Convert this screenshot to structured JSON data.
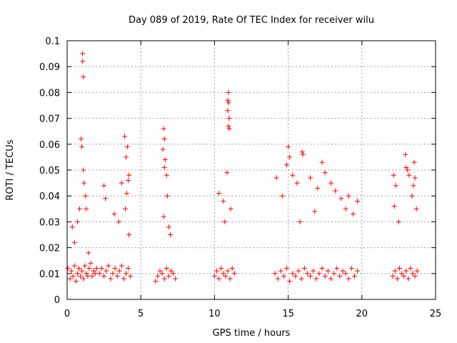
{
  "chart_data": {
    "type": "scatter",
    "title": "Day 089 of 2019, Rate Of TEC Index for receiver wilu",
    "xlabel": "GPS time / hours",
    "ylabel": "ROTI / TECUs",
    "xlim": [
      0,
      25
    ],
    "ylim": [
      0,
      0.1
    ],
    "xticks": [
      "0",
      "5",
      "10",
      "15",
      "20",
      "25"
    ],
    "yticks": [
      "0",
      "0.01",
      "0.02",
      "0.03",
      "0.04",
      "0.05",
      "0.06",
      "0.07",
      "0.08",
      "0.09",
      "0.1"
    ],
    "grid": true,
    "marker": "+",
    "marker_color": "#ff0000",
    "series": [
      {
        "name": "ROTI",
        "x": [
          0.05,
          0.2,
          0.3,
          0.4,
          0.5,
          0.6,
          0.7,
          0.8,
          0.9,
          1.0,
          1.1,
          1.2,
          1.3,
          1.4,
          1.5,
          1.6,
          1.7,
          1.8,
          1.9,
          2.0,
          1.05,
          1.05,
          1.1,
          0.95,
          1.0,
          1.1,
          1.15,
          0.85,
          0.7,
          1.3,
          1.25,
          0.35,
          0.5,
          1.45,
          2.2,
          2.35,
          2.5,
          2.65,
          2.8,
          2.95,
          3.1,
          3.25,
          3.4,
          3.55,
          3.7,
          3.85,
          4.0,
          4.15,
          4.3,
          2.5,
          2.6,
          3.2,
          3.5,
          3.7,
          3.9,
          4.1,
          4.0,
          4.2,
          4.15,
          4.05,
          3.95,
          4.2,
          6.0,
          6.15,
          6.3,
          6.45,
          6.6,
          6.75,
          6.9,
          7.05,
          7.2,
          7.35,
          6.55,
          6.6,
          6.5,
          6.65,
          6.6,
          6.75,
          6.8,
          6.55,
          6.9,
          7.0,
          10.0,
          10.15,
          10.3,
          10.45,
          10.6,
          10.75,
          10.9,
          11.05,
          11.2,
          11.35,
          10.95,
          10.9,
          10.95,
          10.9,
          11.0,
          10.95,
          11.0,
          10.85,
          10.3,
          10.6,
          11.1,
          10.7,
          14.1,
          14.3,
          14.5,
          14.7,
          14.9,
          15.1,
          15.3,
          15.5,
          15.7,
          15.9,
          16.1,
          16.3,
          16.5,
          16.7,
          16.9,
          17.1,
          17.3,
          17.5,
          17.7,
          17.9,
          18.1,
          18.3,
          18.5,
          18.7,
          18.9,
          19.1,
          19.3,
          19.5,
          19.7,
          14.2,
          14.9,
          15.0,
          15.1,
          14.6,
          15.3,
          15.6,
          15.95,
          16.0,
          16.5,
          17.0,
          17.3,
          17.5,
          17.9,
          18.2,
          18.6,
          18.9,
          19.1,
          19.4,
          19.7,
          15.8,
          16.8,
          22.1,
          22.25,
          22.4,
          22.55,
          22.7,
          22.85,
          23.0,
          23.15,
          23.3,
          23.45,
          23.6,
          23.75,
          22.15,
          22.3,
          22.2,
          23.0,
          22.95,
          23.1,
          23.2,
          23.5,
          23.55,
          23.6,
          23.4,
          23.7,
          22.5
        ],
        "y": [
          0.012,
          0.008,
          0.011,
          0.009,
          0.013,
          0.007,
          0.01,
          0.012,
          0.009,
          0.011,
          0.008,
          0.013,
          0.01,
          0.009,
          0.012,
          0.014,
          0.009,
          0.011,
          0.01,
          0.012,
          0.095,
          0.092,
          0.086,
          0.062,
          0.059,
          0.05,
          0.045,
          0.035,
          0.03,
          0.035,
          0.04,
          0.028,
          0.022,
          0.018,
          0.01,
          0.012,
          0.009,
          0.011,
          0.013,
          0.008,
          0.01,
          0.012,
          0.009,
          0.011,
          0.013,
          0.008,
          0.01,
          0.012,
          0.009,
          0.044,
          0.039,
          0.033,
          0.03,
          0.045,
          0.063,
          0.059,
          0.055,
          0.048,
          0.046,
          0.041,
          0.035,
          0.025,
          0.007,
          0.009,
          0.011,
          0.01,
          0.008,
          0.012,
          0.009,
          0.011,
          0.01,
          0.008,
          0.066,
          0.062,
          0.058,
          0.054,
          0.051,
          0.048,
          0.04,
          0.032,
          0.028,
          0.025,
          0.009,
          0.011,
          0.008,
          0.012,
          0.01,
          0.009,
          0.011,
          0.008,
          0.012,
          0.01,
          0.08,
          0.077,
          0.076,
          0.073,
          0.07,
          0.067,
          0.066,
          0.049,
          0.041,
          0.038,
          0.035,
          0.03,
          0.01,
          0.008,
          0.011,
          0.009,
          0.012,
          0.007,
          0.01,
          0.009,
          0.011,
          0.008,
          0.012,
          0.01,
          0.009,
          0.011,
          0.008,
          0.01,
          0.012,
          0.009,
          0.011,
          0.008,
          0.01,
          0.012,
          0.009,
          0.011,
          0.01,
          0.008,
          0.012,
          0.009,
          0.011,
          0.047,
          0.052,
          0.059,
          0.055,
          0.04,
          0.048,
          0.045,
          0.057,
          0.056,
          0.047,
          0.043,
          0.053,
          0.049,
          0.045,
          0.042,
          0.039,
          0.035,
          0.04,
          0.033,
          0.038,
          0.03,
          0.034,
          0.009,
          0.011,
          0.008,
          0.012,
          0.01,
          0.009,
          0.011,
          0.008,
          0.012,
          0.01,
          0.009,
          0.011,
          0.048,
          0.044,
          0.036,
          0.051,
          0.056,
          0.05,
          0.048,
          0.044,
          0.053,
          0.047,
          0.04,
          0.035,
          0.03
        ]
      }
    ]
  }
}
